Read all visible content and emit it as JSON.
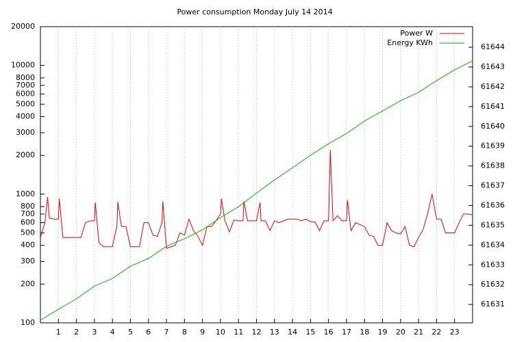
{
  "chart_data": {
    "type": "line",
    "title": "Power consumption Monday July 14 2014",
    "xlim": [
      0,
      24
    ],
    "xticks": [
      1,
      2,
      3,
      4,
      5,
      6,
      7,
      8,
      9,
      10,
      11,
      12,
      13,
      14,
      15,
      16,
      17,
      18,
      19,
      20,
      21,
      22,
      23
    ],
    "ylim": [
      100,
      20000
    ],
    "yticks": [
      100,
      200,
      300,
      400,
      500,
      600,
      700,
      800,
      1000,
      2000,
      3000,
      4000,
      5000,
      6000,
      7000,
      8000,
      10000,
      20000
    ],
    "log_y": true,
    "y2lim": [
      61630.07,
      61645.04
    ],
    "y2ticks": [
      61631,
      61632,
      61633,
      61634,
      61635,
      61636,
      61637,
      61638,
      61639,
      61640,
      61641,
      61642,
      61643,
      61644
    ],
    "grid": "x",
    "legend": "top-right",
    "series": [
      {
        "name": "Power W",
        "color": "#e00000",
        "x": [
          0,
          0.25,
          0.4,
          0.5,
          0.75,
          1.0,
          1.05,
          1.25,
          1.5,
          1.75,
          2.0,
          2.25,
          2.5,
          2.75,
          3.0,
          3.05,
          3.25,
          3.5,
          3.75,
          4.0,
          4.25,
          4.3,
          4.5,
          4.75,
          5.0,
          5.25,
          5.5,
          5.75,
          6.0,
          6.25,
          6.5,
          6.75,
          6.8,
          7.0,
          7.25,
          7.5,
          7.75,
          8.0,
          8.25,
          8.5,
          8.75,
          9.0,
          9.25,
          9.5,
          9.75,
          10.0,
          10.05,
          10.25,
          10.5,
          10.75,
          11.0,
          11.25,
          11.3,
          11.5,
          11.75,
          12.0,
          12.2,
          12.25,
          12.5,
          12.75,
          13.0,
          13.25,
          13.5,
          13.75,
          14.0,
          14.25,
          14.5,
          14.75,
          15.0,
          15.25,
          15.5,
          15.75,
          16.0,
          16.1,
          16.25,
          16.5,
          16.75,
          17.0,
          17.05,
          17.25,
          17.5,
          17.75,
          18.0,
          18.25,
          18.5,
          18.75,
          19.0,
          19.25,
          19.5,
          19.75,
          20.0,
          20.25,
          20.5,
          20.75,
          21.0,
          21.25,
          21.5,
          21.75,
          22.0,
          22.25,
          22.5,
          22.75,
          23.0,
          23.25,
          23.5,
          23.75,
          24.0
        ],
        "values": [
          460,
          600,
          950,
          650,
          640,
          640,
          920,
          460,
          460,
          460,
          460,
          460,
          600,
          620,
          620,
          860,
          420,
          390,
          390,
          390,
          570,
          870,
          560,
          560,
          390,
          390,
          390,
          600,
          600,
          480,
          470,
          600,
          880,
          380,
          390,
          400,
          500,
          480,
          640,
          520,
          470,
          400,
          560,
          560,
          620,
          700,
          920,
          620,
          510,
          630,
          620,
          620,
          880,
          620,
          620,
          620,
          860,
          620,
          620,
          520,
          620,
          600,
          620,
          640,
          640,
          640,
          620,
          640,
          610,
          610,
          520,
          620,
          620,
          2200,
          620,
          680,
          620,
          620,
          900,
          520,
          600,
          580,
          560,
          480,
          470,
          400,
          400,
          600,
          520,
          500,
          490,
          560,
          400,
          390,
          460,
          530,
          700,
          1000,
          640,
          640,
          500,
          500,
          500,
          600,
          700,
          700,
          690
        ]
      },
      {
        "name": "Energy KWh",
        "color": "#00b000",
        "axis": "y2",
        "x": [
          0,
          1,
          2,
          3,
          4,
          5,
          6,
          7,
          8,
          9,
          10,
          11,
          12,
          13,
          14,
          15,
          16,
          17,
          18,
          19,
          20,
          21,
          22,
          23,
          24
        ],
        "values": [
          61630.2,
          61630.76,
          61631.28,
          61631.93,
          61632.31,
          61632.93,
          61633.32,
          61633.94,
          61634.32,
          61634.77,
          61635.39,
          61635.94,
          61636.63,
          61637.29,
          61637.91,
          61638.54,
          61639.12,
          61639.64,
          61640.27,
          61640.78,
          61641.3,
          61641.72,
          61642.31,
          61642.86,
          61643.31
        ]
      }
    ]
  }
}
